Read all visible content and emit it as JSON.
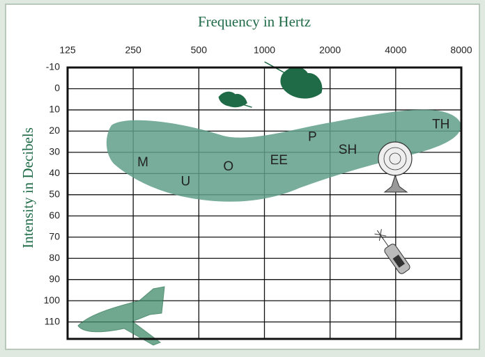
{
  "chart_data": {
    "type": "scatter",
    "title": "Frequency in Hertz",
    "y_label": "Intensity  in Decibels",
    "xscale": "log",
    "y_inverted": true,
    "grid": true,
    "xlim": [
      125,
      8000
    ],
    "xticks": [
      125,
      250,
      500,
      1000,
      2000,
      4000,
      8000
    ],
    "ylim": [
      -10,
      118
    ],
    "yticks": [
      -10,
      0,
      10,
      20,
      30,
      40,
      50,
      60,
      70,
      80,
      90,
      100,
      110
    ],
    "color": "#222222",
    "annotations": [
      {
        "text": "M",
        "x": 277,
        "y": 35
      },
      {
        "text": "U",
        "x": 435,
        "y": 44
      },
      {
        "text": "O",
        "x": 683,
        "y": 37
      },
      {
        "text": "EE",
        "x": 1165,
        "y": 34
      },
      {
        "text": "P",
        "x": 1660,
        "y": 23
      },
      {
        "text": "SH",
        "x": 2410,
        "y": 29
      },
      {
        "text": "TH",
        "x": 6450,
        "y": 17
      }
    ]
  }
}
